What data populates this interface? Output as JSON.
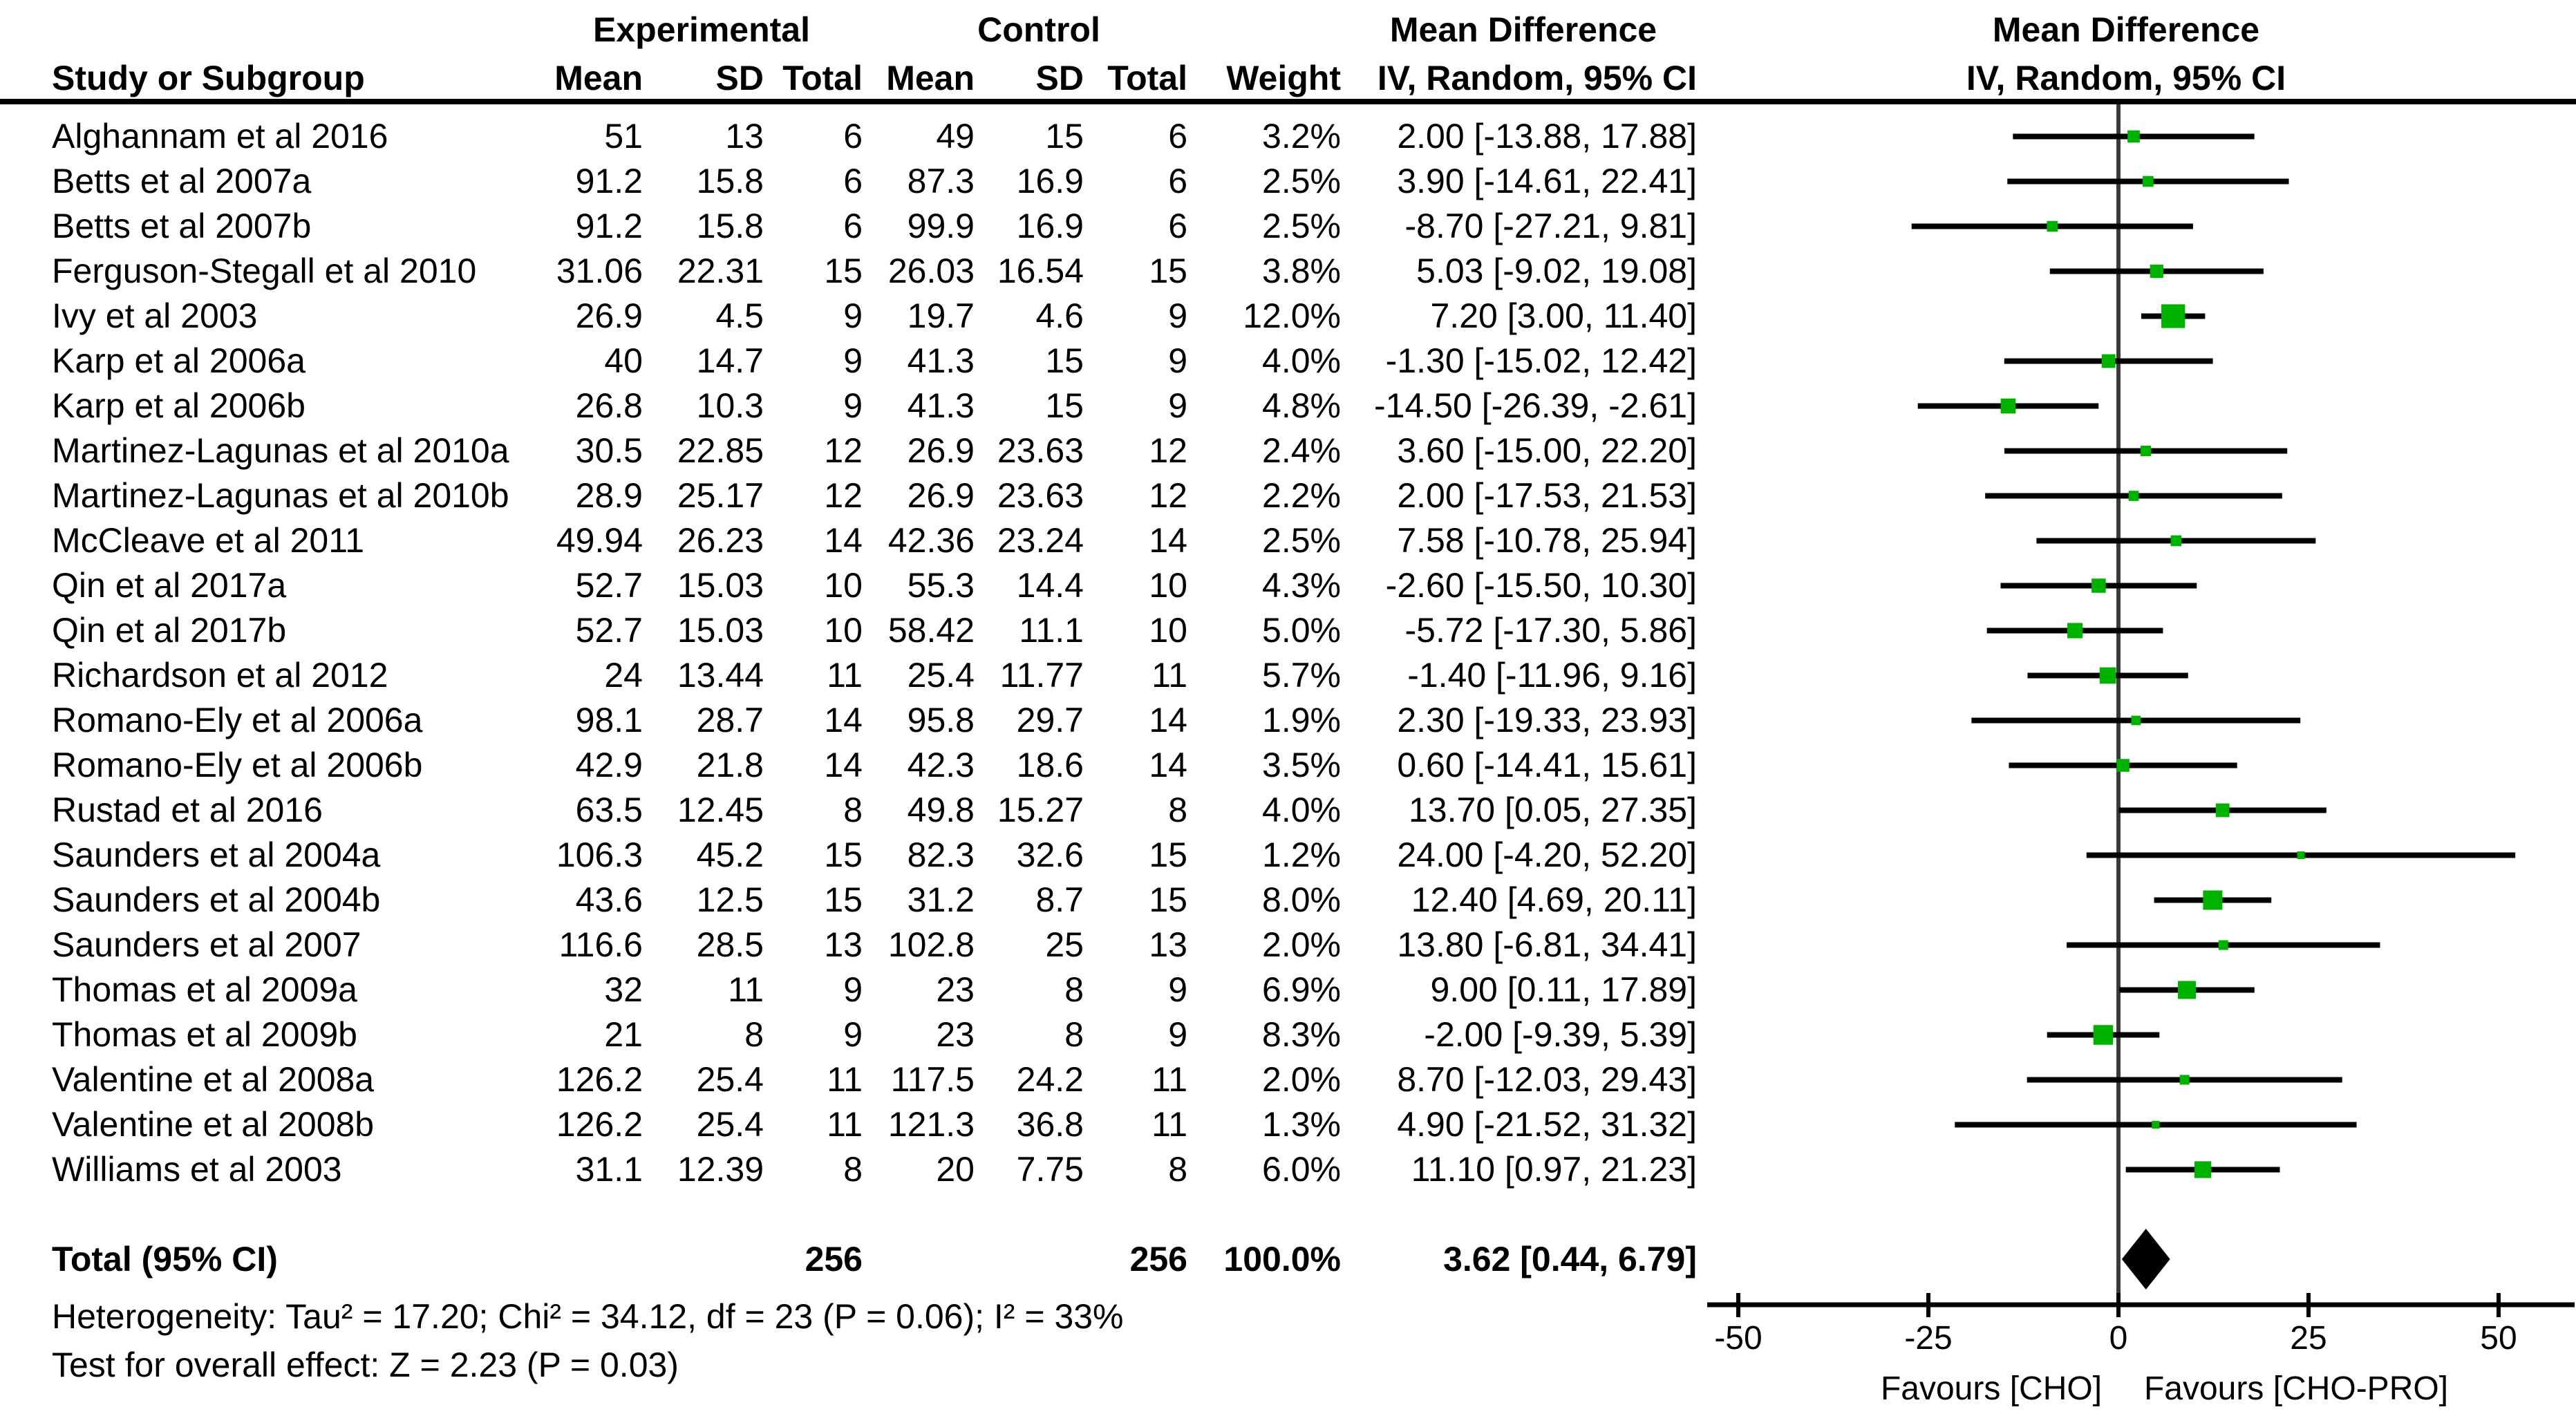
{
  "group_headers": {
    "experimental": "Experimental",
    "control": "Control",
    "md_left": "Mean Difference",
    "md_right": "Mean Difference"
  },
  "column_headers": {
    "study": "Study or Subgroup",
    "mean": "Mean",
    "sd": "SD",
    "total": "Total",
    "weight": "Weight",
    "iv_left": "IV, Random, 95% CI",
    "iv_right": "IV, Random, 95% CI"
  },
  "total_row": {
    "label": "Total (95% CI)",
    "e_total": "256",
    "c_total": "256",
    "weight": "100.0%",
    "md_ci": "3.62 [0.44, 6.79]"
  },
  "footer": {
    "heterogeneity": "Heterogeneity: Tau² = 17.20; Chi² = 34.12, df = 23 (P = 0.06); I² = 33%",
    "overall_effect": "Test for overall effect: Z = 2.23 (P = 0.03)"
  },
  "colors": {
    "marker": "#00b200",
    "ci_line": "#000000",
    "zero_line": "#3a3a3a",
    "axis": "#000000"
  },
  "chart_data": {
    "type": "forest",
    "effect_measure": "Mean Difference, IV, Random, 95% CI",
    "xlim": [
      -50,
      50
    ],
    "axis": {
      "ticks": [
        -50,
        -25,
        0,
        25,
        50
      ],
      "favours_left": "Favours [CHO]",
      "favours_right": "Favours [CHO-PRO]"
    },
    "studies": [
      {
        "study": "Alghannam et al 2016",
        "e_mean": "51",
        "e_sd": "13",
        "e_total": "6",
        "c_mean": "49",
        "c_sd": "15",
        "c_total": "6",
        "weight": 3.2,
        "md": 2.0,
        "lo": -13.88,
        "hi": 17.88
      },
      {
        "study": "Betts et al 2007a",
        "e_mean": "91.2",
        "e_sd": "15.8",
        "e_total": "6",
        "c_mean": "87.3",
        "c_sd": "16.9",
        "c_total": "6",
        "weight": 2.5,
        "md": 3.9,
        "lo": -14.61,
        "hi": 22.41
      },
      {
        "study": "Betts et al 2007b",
        "e_mean": "91.2",
        "e_sd": "15.8",
        "e_total": "6",
        "c_mean": "99.9",
        "c_sd": "16.9",
        "c_total": "6",
        "weight": 2.5,
        "md": -8.7,
        "lo": -27.21,
        "hi": 9.81
      },
      {
        "study": "Ferguson-Stegall et al 2010",
        "e_mean": "31.06",
        "e_sd": "22.31",
        "e_total": "15",
        "c_mean": "26.03",
        "c_sd": "16.54",
        "c_total": "15",
        "weight": 3.8,
        "md": 5.03,
        "lo": -9.02,
        "hi": 19.08
      },
      {
        "study": "Ivy et al 2003",
        "e_mean": "26.9",
        "e_sd": "4.5",
        "e_total": "9",
        "c_mean": "19.7",
        "c_sd": "4.6",
        "c_total": "9",
        "weight": 12.0,
        "md": 7.2,
        "lo": 3.0,
        "hi": 11.4
      },
      {
        "study": "Karp et al 2006a",
        "e_mean": "40",
        "e_sd": "14.7",
        "e_total": "9",
        "c_mean": "41.3",
        "c_sd": "15",
        "c_total": "9",
        "weight": 4.0,
        "md": -1.3,
        "lo": -15.02,
        "hi": 12.42
      },
      {
        "study": "Karp et al 2006b",
        "e_mean": "26.8",
        "e_sd": "10.3",
        "e_total": "9",
        "c_mean": "41.3",
        "c_sd": "15",
        "c_total": "9",
        "weight": 4.8,
        "md": -14.5,
        "lo": -26.39,
        "hi": -2.61
      },
      {
        "study": "Martinez-Lagunas et al 2010a",
        "e_mean": "30.5",
        "e_sd": "22.85",
        "e_total": "12",
        "c_mean": "26.9",
        "c_sd": "23.63",
        "c_total": "12",
        "weight": 2.4,
        "md": 3.6,
        "lo": -15.0,
        "hi": 22.2
      },
      {
        "study": "Martinez-Lagunas et al 2010b",
        "e_mean": "28.9",
        "e_sd": "25.17",
        "e_total": "12",
        "c_mean": "26.9",
        "c_sd": "23.63",
        "c_total": "12",
        "weight": 2.2,
        "md": 2.0,
        "lo": -17.53,
        "hi": 21.53
      },
      {
        "study": "McCleave et al 2011",
        "e_mean": "49.94",
        "e_sd": "26.23",
        "e_total": "14",
        "c_mean": "42.36",
        "c_sd": "23.24",
        "c_total": "14",
        "weight": 2.5,
        "md": 7.58,
        "lo": -10.78,
        "hi": 25.94
      },
      {
        "study": "Qin et al 2017a",
        "e_mean": "52.7",
        "e_sd": "15.03",
        "e_total": "10",
        "c_mean": "55.3",
        "c_sd": "14.4",
        "c_total": "10",
        "weight": 4.3,
        "md": -2.6,
        "lo": -15.5,
        "hi": 10.3
      },
      {
        "study": "Qin et al 2017b",
        "e_mean": "52.7",
        "e_sd": "15.03",
        "e_total": "10",
        "c_mean": "58.42",
        "c_sd": "11.1",
        "c_total": "10",
        "weight": 5.0,
        "md": -5.72,
        "lo": -17.3,
        "hi": 5.86
      },
      {
        "study": "Richardson et al 2012",
        "e_mean": "24",
        "e_sd": "13.44",
        "e_total": "11",
        "c_mean": "25.4",
        "c_sd": "11.77",
        "c_total": "11",
        "weight": 5.7,
        "md": -1.4,
        "lo": -11.96,
        "hi": 9.16
      },
      {
        "study": "Romano-Ely et al 2006a",
        "e_mean": "98.1",
        "e_sd": "28.7",
        "e_total": "14",
        "c_mean": "95.8",
        "c_sd": "29.7",
        "c_total": "14",
        "weight": 1.9,
        "md": 2.3,
        "lo": -19.33,
        "hi": 23.93
      },
      {
        "study": "Romano-Ely et al 2006b",
        "e_mean": "42.9",
        "e_sd": "21.8",
        "e_total": "14",
        "c_mean": "42.3",
        "c_sd": "18.6",
        "c_total": "14",
        "weight": 3.5,
        "md": 0.6,
        "lo": -14.41,
        "hi": 15.61
      },
      {
        "study": "Rustad et al 2016",
        "e_mean": "63.5",
        "e_sd": "12.45",
        "e_total": "8",
        "c_mean": "49.8",
        "c_sd": "15.27",
        "c_total": "8",
        "weight": 4.0,
        "md": 13.7,
        "lo": 0.05,
        "hi": 27.35
      },
      {
        "study": "Saunders et al 2004a",
        "e_mean": "106.3",
        "e_sd": "45.2",
        "e_total": "15",
        "c_mean": "82.3",
        "c_sd": "32.6",
        "c_total": "15",
        "weight": 1.2,
        "md": 24.0,
        "lo": -4.2,
        "hi": 52.2
      },
      {
        "study": "Saunders et al 2004b",
        "e_mean": "43.6",
        "e_sd": "12.5",
        "e_total": "15",
        "c_mean": "31.2",
        "c_sd": "8.7",
        "c_total": "15",
        "weight": 8.0,
        "md": 12.4,
        "lo": 4.69,
        "hi": 20.11
      },
      {
        "study": "Saunders et al 2007",
        "e_mean": "116.6",
        "e_sd": "28.5",
        "e_total": "13",
        "c_mean": "102.8",
        "c_sd": "25",
        "c_total": "13",
        "weight": 2.0,
        "md": 13.8,
        "lo": -6.81,
        "hi": 34.41
      },
      {
        "study": "Thomas et al 2009a",
        "e_mean": "32",
        "e_sd": "11",
        "e_total": "9",
        "c_mean": "23",
        "c_sd": "8",
        "c_total": "9",
        "weight": 6.9,
        "md": 9.0,
        "lo": 0.11,
        "hi": 17.89
      },
      {
        "study": "Thomas et al 2009b",
        "e_mean": "21",
        "e_sd": "8",
        "e_total": "9",
        "c_mean": "23",
        "c_sd": "8",
        "c_total": "9",
        "weight": 8.3,
        "md": -2.0,
        "lo": -9.39,
        "hi": 5.39
      },
      {
        "study": "Valentine et al 2008a",
        "e_mean": "126.2",
        "e_sd": "25.4",
        "e_total": "11",
        "c_mean": "117.5",
        "c_sd": "24.2",
        "c_total": "11",
        "weight": 2.0,
        "md": 8.7,
        "lo": -12.03,
        "hi": 29.43
      },
      {
        "study": "Valentine et al 2008b",
        "e_mean": "126.2",
        "e_sd": "25.4",
        "e_total": "11",
        "c_mean": "121.3",
        "c_sd": "36.8",
        "c_total": "11",
        "weight": 1.3,
        "md": 4.9,
        "lo": -21.52,
        "hi": 31.32
      },
      {
        "study": "Williams et al 2003",
        "e_mean": "31.1",
        "e_sd": "12.39",
        "e_total": "8",
        "c_mean": "20",
        "c_sd": "7.75",
        "c_total": "8",
        "weight": 6.0,
        "md": 11.1,
        "lo": 0.97,
        "hi": 21.23
      }
    ],
    "total": {
      "label": "Total (95% CI)",
      "e_total": 256,
      "c_total": 256,
      "weight": 100.0,
      "md": 3.62,
      "lo": 0.44,
      "hi": 6.79
    }
  }
}
